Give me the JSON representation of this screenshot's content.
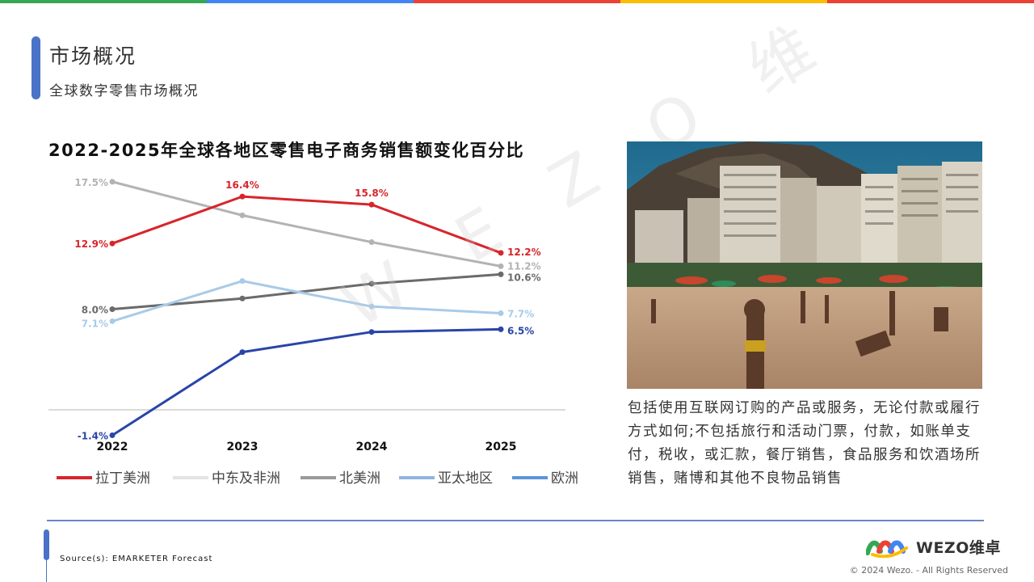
{
  "header": {
    "title": "市场概况",
    "subtitle": "全球数字零售市场概况",
    "top_colors": [
      "#34a853",
      "#4285f4",
      "#ea4335",
      "#fbbc05",
      "#ea4335"
    ]
  },
  "chart_heading": "2022-2025年全球各地区零售电子商务销售额变化百分比",
  "chart_data": {
    "type": "line",
    "categories": [
      "2022",
      "2023",
      "2024",
      "2025"
    ],
    "ylim": [
      -3,
      19
    ],
    "grid": false,
    "legend_position": "bottom",
    "series": [
      {
        "name": "拉丁美洲",
        "color": "#d7252c",
        "values": [
          12.9,
          16.4,
          15.8,
          12.2
        ],
        "labels": [
          "12.9%",
          "16.4%",
          "15.8%",
          "12.2%"
        ]
      },
      {
        "name": "中东及非洲",
        "color": "#b3b3b3",
        "values": [
          17.5,
          15.0,
          13.0,
          11.2
        ],
        "labels": [
          "17.5%",
          "",
          "",
          "11.2%"
        ]
      },
      {
        "name": "北美洲",
        "color": "#6b6b6b",
        "values": [
          8.0,
          8.8,
          9.9,
          10.6
        ],
        "labels": [
          "8.0%",
          "",
          "",
          "10.6%"
        ]
      },
      {
        "name": "亚太地区",
        "color": "#a9cbe8",
        "values": [
          7.1,
          10.1,
          8.2,
          7.7
        ],
        "labels": [
          "7.1%",
          "",
          "",
          "7.7%"
        ]
      },
      {
        "name": "欧洲",
        "color": "#2a45a8",
        "values": [
          -1.4,
          4.8,
          6.3,
          6.5
        ],
        "labels": [
          "-1.4%",
          "",
          "",
          "6.5%"
        ]
      }
    ],
    "legend_colors": [
      "#d7252c",
      "#e3e3e3",
      "#9a9a9a",
      "#8fb4de",
      "#5b95d6"
    ]
  },
  "description": "包括使用互联网订购的产品或服务，无论付款或履行方式如何;不包括旅行和活动门票，付款，如账单支付，税收，或汇款，餐厅销售，食品服务和饮酒场所销售，赌博和其他不良物品销售",
  "footer": {
    "source": "Source(s): EMARKETER Forecast",
    "logo_text": "WEZO维卓",
    "copyright": "© 2024 Wezo. - All Rights Reserved"
  },
  "watermark": "W E Z O 维"
}
